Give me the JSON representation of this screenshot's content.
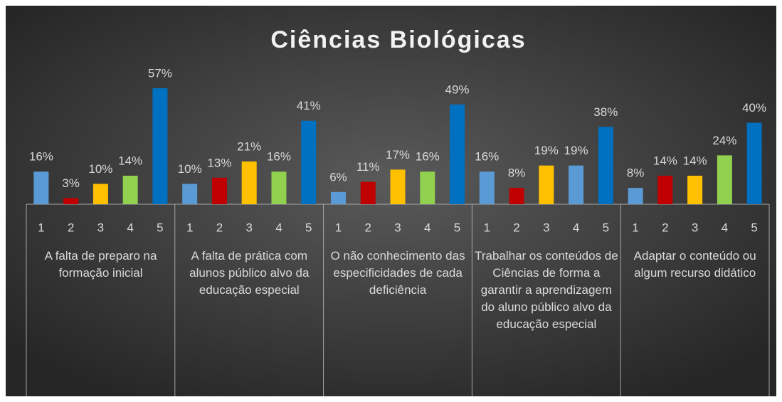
{
  "chart_data": {
    "type": "bar",
    "title": "Ciências Biológicas",
    "ylim": [
      0,
      100
    ],
    "groups": [
      {
        "name": "A falta de preparo na formação inicial",
        "categories": [
          "1",
          "2",
          "3",
          "4",
          "5"
        ],
        "values": [
          16,
          3,
          10,
          14,
          57
        ],
        "value_labels": [
          "16%",
          "3%",
          "10%",
          "14%",
          "57%"
        ],
        "colors": [
          "#5b9bd5",
          "#c00000",
          "#ffc000",
          "#92d050",
          "#0070c0"
        ]
      },
      {
        "name": "A falta de prática com alunos público alvo da educação especial",
        "categories": [
          "1",
          "2",
          "3",
          "4",
          "5"
        ],
        "values": [
          10,
          13,
          21,
          16,
          41
        ],
        "value_labels": [
          "10%",
          "13%",
          "21%",
          "16%",
          "41%"
        ],
        "colors": [
          "#5b9bd5",
          "#c00000",
          "#ffc000",
          "#92d050",
          "#0070c0"
        ]
      },
      {
        "name": "O não conhecimento das especificidades de cada deficiência",
        "categories": [
          "1",
          "2",
          "3",
          "4",
          "5"
        ],
        "values": [
          6,
          11,
          17,
          16,
          49
        ],
        "value_labels": [
          "6%",
          "11%",
          "17%",
          "16%",
          "49%"
        ],
        "colors": [
          "#5b9bd5",
          "#c00000",
          "#ffc000",
          "#92d050",
          "#0070c0"
        ]
      },
      {
        "name": "Trabalhar os conteúdos de Ciências de forma a garantir a aprendizagem do aluno público alvo da educação especial",
        "categories": [
          "1",
          "2",
          "3",
          "4",
          "5"
        ],
        "values": [
          16,
          8,
          19,
          19,
          38
        ],
        "value_labels": [
          "16%",
          "8%",
          "19%",
          "19%",
          "38%"
        ],
        "colors": [
          "#5b9bd5",
          "#c00000",
          "#ffc000",
          "#5b9bd5",
          "#0070c0"
        ]
      },
      {
        "name": "Adaptar o conteúdo ou algum recurso didático",
        "categories": [
          "1",
          "2",
          "3",
          "4",
          "5"
        ],
        "values": [
          8,
          14,
          14,
          24,
          40
        ],
        "value_labels": [
          "8%",
          "14%",
          "14%",
          "24%",
          "40%"
        ],
        "colors": [
          "#5b9bd5",
          "#c00000",
          "#ffc000",
          "#92d050",
          "#0070c0"
        ]
      }
    ]
  }
}
